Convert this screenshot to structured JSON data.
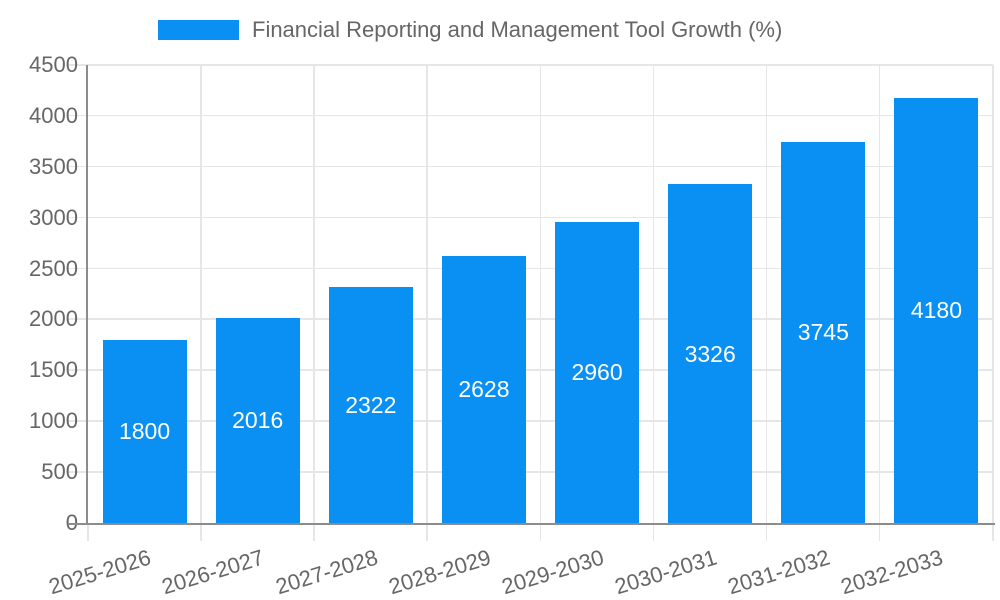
{
  "chart_data": {
    "type": "bar",
    "title": "Financial Reporting and Management Tool Growth (%)",
    "categories": [
      "2025-2026",
      "2026-2027",
      "2027-2028",
      "2028-2029",
      "2029-2030",
      "2030-2031",
      "2031-2032",
      "2032-2033"
    ],
    "values": [
      1800,
      2016,
      2322,
      2628,
      2960,
      3326,
      3745,
      4180
    ],
    "xlabel": "",
    "ylabel": "",
    "ylim": [
      0,
      4500
    ],
    "ytick_step": 500,
    "grid": true,
    "legend_position": "top",
    "colors": {
      "bar": "#0a90f2",
      "bar_label": "#ffffff",
      "axis_text": "#666666",
      "grid_line": "#e6e6e6",
      "axis_line": "#8c8c8c",
      "background": "#ffffff"
    }
  }
}
